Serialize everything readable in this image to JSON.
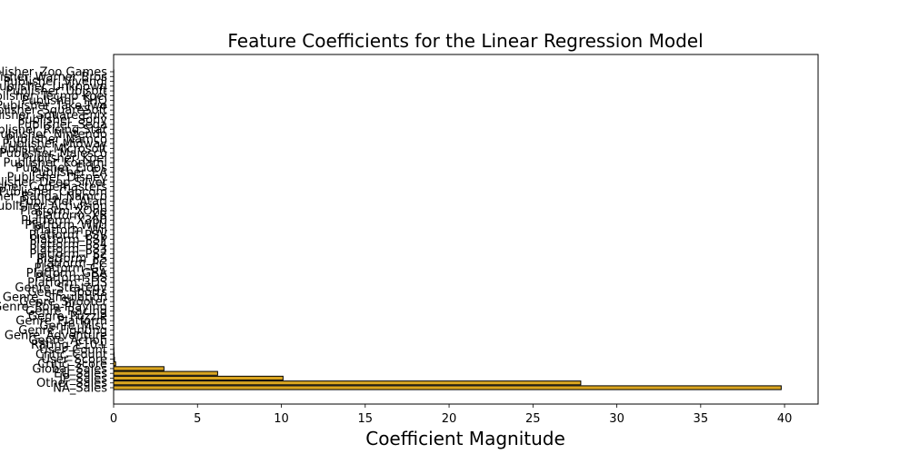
{
  "chart_data": {
    "type": "bar",
    "orientation": "horizontal",
    "title": "Feature Coefficients for the Linear Regression Model",
    "xlabel": "Coefficient Magnitude",
    "ylabel": "",
    "xlim": [
      0,
      42
    ],
    "xticks": [
      0,
      5,
      10,
      15,
      20,
      25,
      30,
      35,
      40
    ],
    "grid": false,
    "bar_color": "#DAA520",
    "edge_color": "#000000",
    "categories": [
      "NA_Sales",
      "Other_Sales",
      "JP_Sales",
      "EU_Sales",
      "Global_Sales",
      "Critic_Score",
      "User_Score",
      "Critic_Count",
      "User_Count",
      "Rating_E10+",
      "Genre_Action",
      "Genre_Adventure",
      "Genre_Fighting",
      "Genre_Misc",
      "Genre_Platform",
      "Genre_Puzzle",
      "Genre_Racing",
      "Genre_Role-Playing",
      "Genre_Shooter",
      "Genre_Simulation",
      "Genre_Sports",
      "Genre_Strategy",
      "Platform_3DS",
      "Platform_DS",
      "Platform_GBA",
      "Platform_GC",
      "Platform_PC",
      "Platform_PS",
      "Platform_PS2",
      "Platform_PS3",
      "Platform_PS4",
      "Platform_PSP",
      "Platform_PSV",
      "Platform_Wii",
      "Platform_WiiU",
      "Platform_X360",
      "Platform_XB",
      "Platform_XOne",
      "Publisher_Activision",
      "Publisher_Atari",
      "Publisher_Bandai Namco",
      "Publisher_Capcom",
      "Publisher_Codemasters",
      "Publisher_Deep Silver",
      "Publisher_Disney",
      "Publisher_EA",
      "Publisher_Eidos",
      "Publisher_Konami",
      "Publisher_Koei",
      "Publisher_Majesco",
      "Publisher_Microsoft",
      "Publisher_Midway",
      "Publisher_Namco",
      "Publisher_Nintendo",
      "Publisher_Rising Star",
      "Publisher_Sega",
      "Publisher_Sony",
      "Publisher_Square Enix",
      "Publisher_SquareSoft",
      "Publisher_Take-Two",
      "Publisher_THQ",
      "Publisher_Tecmo Koei",
      "Publisher_Ubisoft",
      "Publisher_Unknown",
      "Publisher_Vivendi",
      "Publisher_Warner Bros",
      "Publisher_Zoo Games"
    ],
    "values": [
      39.8,
      27.85,
      10.1,
      6.2,
      3.0,
      0.12,
      0.05,
      0.03,
      0.02,
      0.01,
      0.01,
      0.01,
      0.01,
      0.01,
      0.01,
      0.01,
      0.01,
      0.01,
      0.01,
      0.01,
      0.01,
      0.01,
      0.01,
      0.01,
      0.01,
      0.01,
      0.01,
      0.01,
      0.01,
      0.01,
      0.01,
      0.01,
      0.01,
      0.01,
      0.01,
      0.01,
      0.01,
      0.01,
      0.01,
      0.01,
      0.01,
      0.01,
      0.01,
      0.01,
      0.01,
      0.01,
      0.01,
      0.01,
      0.01,
      0.01,
      0.01,
      0.01,
      0.01,
      0.01,
      0.01,
      0.01,
      0.01,
      0.01,
      0.01,
      0.01,
      0.01,
      0.01,
      0.01,
      0.01,
      0.01,
      0.01,
      0.01
    ]
  }
}
